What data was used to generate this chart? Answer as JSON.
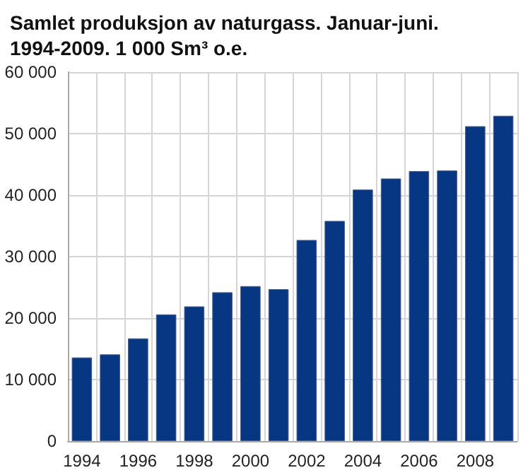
{
  "chart_data": {
    "type": "bar",
    "title": "Samlet produksjon av naturgass. Januar-juni. 1994-2009. 1 000 Sm³ o.e.",
    "categories": [
      "1994",
      null,
      "1996",
      null,
      "1998",
      null,
      "2000",
      null,
      "2002",
      null,
      "2004",
      null,
      "2006",
      null,
      "2008",
      null
    ],
    "values": [
      13600,
      14100,
      16700,
      20600,
      21900,
      24200,
      25200,
      24700,
      32700,
      35800,
      40900,
      42700,
      43900,
      44000,
      51200,
      52900
    ],
    "color": "#073682",
    "ylim": [
      0,
      60000
    ],
    "yticks": [
      0,
      10000,
      20000,
      30000,
      40000,
      50000,
      60000
    ],
    "grid": true
  }
}
